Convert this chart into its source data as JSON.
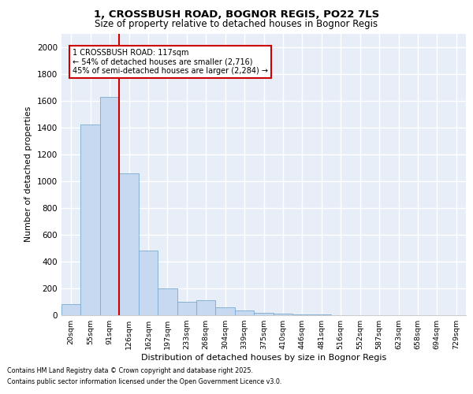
{
  "title1": "1, CROSSBUSH ROAD, BOGNOR REGIS, PO22 7LS",
  "title2": "Size of property relative to detached houses in Bognor Regis",
  "xlabel": "Distribution of detached houses by size in Bognor Regis",
  "ylabel": "Number of detached properties",
  "bar_color": "#c6d9f0",
  "bar_edge_color": "#7aaacf",
  "categories": [
    "20sqm",
    "55sqm",
    "91sqm",
    "126sqm",
    "162sqm",
    "197sqm",
    "233sqm",
    "268sqm",
    "304sqm",
    "339sqm",
    "375sqm",
    "410sqm",
    "446sqm",
    "481sqm",
    "516sqm",
    "552sqm",
    "587sqm",
    "623sqm",
    "658sqm",
    "694sqm",
    "729sqm"
  ],
  "values": [
    80,
    1420,
    1630,
    1060,
    480,
    200,
    100,
    110,
    60,
    38,
    20,
    10,
    5,
    3,
    2,
    1,
    1,
    0,
    0,
    0,
    0
  ],
  "ylim": [
    0,
    2100
  ],
  "yticks": [
    0,
    200,
    400,
    600,
    800,
    1000,
    1200,
    1400,
    1600,
    1800,
    2000
  ],
  "property_line_color": "#cc0000",
  "property_line_x": 2.5,
  "annotation_line1": "1 CROSSBUSH ROAD: 117sqm",
  "annotation_line2": "← 54% of detached houses are smaller (2,716)",
  "annotation_line3": "45% of semi-detached houses are larger (2,284) →",
  "footnote1": "Contains HM Land Registry data © Crown copyright and database right 2025.",
  "footnote2": "Contains public sector information licensed under the Open Government Licence v3.0.",
  "background_color": "#e8eef8",
  "grid_color": "#ffffff",
  "fig_bg_color": "#ffffff"
}
